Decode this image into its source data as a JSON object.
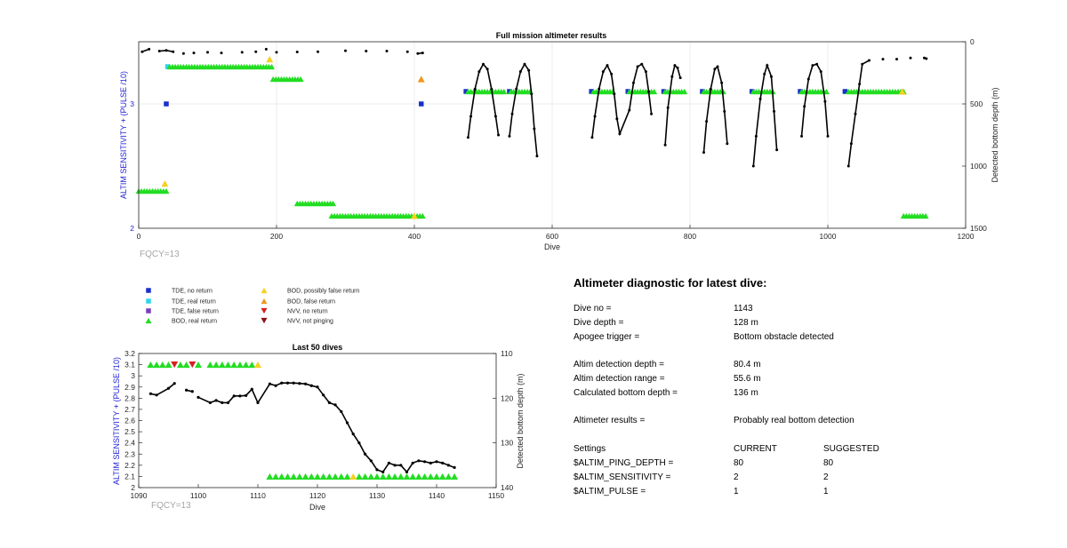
{
  "main_chart": {
    "title": "Full mission altimeter results",
    "xlabel": "Dive",
    "ylabel_left": "ALTIM SENSITIVITY + (PULSE /10)",
    "ylabel_right": "Detected bottom depth (m)",
    "x_ticks": [
      "0",
      "200",
      "400",
      "600",
      "800",
      "1000",
      "1200"
    ],
    "y_left_ticks": [
      "2",
      "3"
    ],
    "y_right_ticks": [
      "0",
      "500",
      "1000",
      "1500"
    ],
    "fqcy": "FQCY=13"
  },
  "legend": [
    {
      "label": "TDE, no return",
      "marker": "square",
      "color": "#1a2fcc"
    },
    {
      "label": "TDE, real return",
      "marker": "square",
      "color": "#2fd6e8"
    },
    {
      "label": "TDE, false return",
      "marker": "square",
      "color": "#7a3fb8"
    },
    {
      "label": "BOD, real return",
      "marker": "triangle-up",
      "color": "#22dd22"
    },
    {
      "label": "BOD, possibly false return",
      "marker": "triangle-up",
      "color": "#f5d020"
    },
    {
      "label": "BOD, false return",
      "marker": "triangle-up",
      "color": "#f0961e"
    },
    {
      "label": "NVV, no return",
      "marker": "triangle-down",
      "color": "#d42020"
    },
    {
      "label": "NVV, not pinging",
      "marker": "triangle-down",
      "color": "#8b1010"
    }
  ],
  "small_chart": {
    "title": "Last 50 dives",
    "xlabel": "Dive",
    "ylabel_left": "ALTIM SENSITIVITY + (PULSE /10)",
    "ylabel_right": "Detected bottom depth (m)",
    "x_ticks": [
      "1090",
      "1100",
      "1110",
      "1120",
      "1130",
      "1140",
      "1150"
    ],
    "y_left_ticks": [
      "2",
      "2.1",
      "2.2",
      "2.3",
      "2.4",
      "2.5",
      "2.6",
      "2.7",
      "2.8",
      "2.9",
      "3",
      "3.1",
      "3.2"
    ],
    "y_right_ticks": [
      "110",
      "120",
      "130",
      "140"
    ],
    "fqcy": "FQCY=13"
  },
  "diagnostic": {
    "title": "Altimeter diagnostic for latest dive:",
    "rows": [
      {
        "label": "Dive no =",
        "value": "1143",
        "extra": ""
      },
      {
        "label": "Dive depth =",
        "value": "128 m",
        "extra": ""
      },
      {
        "label": "Apogee trigger =",
        "value": "Bottom obstacle detected",
        "extra": ""
      },
      {
        "label": "",
        "value": "",
        "extra": ""
      },
      {
        "label": "Altim detection depth =",
        "value": "80.4 m",
        "extra": ""
      },
      {
        "label": "Altim detection range =",
        "value": "55.6 m",
        "extra": ""
      },
      {
        "label": "Calculated bottom depth =",
        "value": "136 m",
        "extra": ""
      },
      {
        "label": "",
        "value": "",
        "extra": ""
      },
      {
        "label": "Altimeter results =",
        "value": "Probably real bottom detection",
        "extra": ""
      },
      {
        "label": "",
        "value": "",
        "extra": ""
      },
      {
        "label": "Settings",
        "value": "CURRENT",
        "extra": "SUGGESTED"
      },
      {
        "label": "$ALTIM_PING_DEPTH =",
        "value": "80",
        "extra": "80"
      },
      {
        "label": "$ALTIM_SENSITIVITY =",
        "value": "2",
        "extra": "2"
      },
      {
        "label": "$ALTIM_PULSE =",
        "value": "1",
        "extra": "1"
      }
    ]
  },
  "chart_data": [
    {
      "type": "scatter",
      "title": "Full mission altimeter results",
      "xlabel": "Dive",
      "ylabel": "ALTIM SENSITIVITY + (PULSE /10)",
      "ylabel_right": "Detected bottom depth (m)",
      "xlim": [
        0,
        1200
      ],
      "ylim": [
        2,
        3.5
      ],
      "ylim_right": [
        0,
        1500
      ],
      "grid": true,
      "bottom_depth_line": [
        [
          5,
          80
        ],
        [
          15,
          60
        ],
        [
          30,
          75
        ],
        [
          40,
          70
        ],
        [
          50,
          80
        ],
        [
          65,
          95
        ],
        [
          80,
          90
        ],
        [
          100,
          85
        ],
        [
          120,
          90
        ],
        [
          150,
          85
        ],
        [
          170,
          80
        ],
        [
          185,
          60
        ],
        [
          200,
          85
        ],
        [
          230,
          82
        ],
        [
          260,
          80
        ],
        [
          300,
          72
        ],
        [
          330,
          75
        ],
        [
          360,
          75
        ],
        [
          390,
          80
        ],
        [
          405,
          95
        ],
        [
          412,
          90
        ],
        [
          478,
          770
        ],
        [
          482,
          600
        ],
        [
          488,
          380
        ],
        [
          494,
          240
        ],
        [
          500,
          180
        ],
        [
          506,
          220
        ],
        [
          512,
          380
        ],
        [
          518,
          600
        ],
        [
          522,
          750
        ],
        [
          538,
          760
        ],
        [
          542,
          580
        ],
        [
          548,
          380
        ],
        [
          554,
          240
        ],
        [
          560,
          180
        ],
        [
          566,
          230
        ],
        [
          570,
          420
        ],
        [
          574,
          700
        ],
        [
          578,
          920
        ],
        [
          658,
          770
        ],
        [
          662,
          600
        ],
        [
          668,
          380
        ],
        [
          674,
          240
        ],
        [
          680,
          190
        ],
        [
          686,
          260
        ],
        [
          690,
          420
        ],
        [
          694,
          620
        ],
        [
          698,
          740
        ],
        [
          712,
          550
        ],
        [
          718,
          330
        ],
        [
          724,
          200
        ],
        [
          730,
          180
        ],
        [
          736,
          240
        ],
        [
          740,
          400
        ],
        [
          744,
          580
        ],
        [
          764,
          830
        ],
        [
          768,
          530
        ],
        [
          774,
          280
        ],
        [
          778,
          190
        ],
        [
          782,
          210
        ],
        [
          786,
          290
        ],
        [
          820,
          890
        ],
        [
          824,
          640
        ],
        [
          830,
          380
        ],
        [
          836,
          220
        ],
        [
          840,
          200
        ],
        [
          846,
          330
        ],
        [
          850,
          560
        ],
        [
          854,
          820
        ],
        [
          892,
          1000
        ],
        [
          896,
          760
        ],
        [
          902,
          460
        ],
        [
          908,
          260
        ],
        [
          912,
          190
        ],
        [
          918,
          280
        ],
        [
          922,
          560
        ],
        [
          926,
          870
        ],
        [
          962,
          760
        ],
        [
          966,
          520
        ],
        [
          972,
          300
        ],
        [
          978,
          190
        ],
        [
          984,
          180
        ],
        [
          990,
          240
        ],
        [
          996,
          480
        ],
        [
          1000,
          760
        ],
        [
          1030,
          1000
        ],
        [
          1034,
          820
        ],
        [
          1040,
          580
        ],
        [
          1046,
          340
        ],
        [
          1050,
          180
        ],
        [
          1060,
          150
        ],
        [
          1080,
          140
        ],
        [
          1100,
          140
        ],
        [
          1120,
          130
        ],
        [
          1140,
          130
        ],
        [
          1143,
          136
        ]
      ],
      "series": [
        {
          "name": "TDE, no return",
          "segments": [
            [
              40,
              3.0
            ],
            [
              410,
              3.0
            ],
            [
              475,
              3.1
            ],
            [
              538,
              3.1
            ],
            [
              657,
              3.1
            ],
            [
              710,
              3.1
            ],
            [
              762,
              3.1
            ],
            [
              818,
              3.1
            ],
            [
              890,
              3.1
            ],
            [
              960,
              3.1
            ],
            [
              1025,
              3.1
            ]
          ]
        },
        {
          "name": "TDE, real return",
          "points": [
            [
              42,
              3.3
            ]
          ]
        },
        {
          "name": "BOD, real return",
          "ranges": [
            [
              45,
              195,
              3.3
            ],
            [
              195,
              235,
              3.2
            ],
            [
              0,
              40,
              2.3
            ],
            [
              230,
              285,
              2.2
            ],
            [
              280,
              415,
              2.1
            ],
            [
              478,
              530,
              3.1
            ],
            [
              540,
              570,
              3.1
            ],
            [
              660,
              690,
              3.1
            ],
            [
              712,
              748,
              3.1
            ],
            [
              764,
              792,
              3.1
            ],
            [
              820,
              850,
              3.1
            ],
            [
              892,
              920,
              3.1
            ],
            [
              962,
              1000,
              3.1
            ],
            [
              1030,
              1110,
              3.1
            ],
            [
              1110,
              1145,
              2.1
            ]
          ]
        },
        {
          "name": "BOD, possibly false return",
          "points": [
            [
              190,
              3.36
            ],
            [
              38,
              2.36
            ],
            [
              400,
              2.1
            ],
            [
              1108,
              3.1
            ]
          ]
        },
        {
          "name": "BOD, false return",
          "points": [
            [
              410,
              3.2
            ]
          ]
        }
      ]
    },
    {
      "type": "scatter",
      "title": "Last 50 dives",
      "xlabel": "Dive",
      "ylabel": "ALTIM SENSITIVITY + (PULSE /10)",
      "ylabel_right": "Detected bottom depth (m)",
      "xlim": [
        1090,
        1150
      ],
      "ylim": [
        2,
        3.2
      ],
      "ylim_right": [
        110,
        140
      ],
      "grid": false,
      "bottom_depth_line": [
        [
          1092,
          119
        ],
        [
          1093,
          119.3
        ],
        [
          1095,
          117.8
        ],
        [
          1096,
          116.7
        ],
        [
          null,
          null
        ],
        [
          1098,
          118.2
        ],
        [
          1099,
          118.5
        ],
        [
          null,
          null
        ],
        [
          1100,
          119.8
        ],
        [
          1102,
          121
        ],
        [
          1103,
          120.5
        ],
        [
          1104,
          121
        ],
        [
          1105,
          121
        ],
        [
          1106,
          119.5
        ],
        [
          1107,
          119.5
        ],
        [
          1108,
          119.4
        ],
        [
          1109,
          118
        ],
        [
          1110,
          121
        ],
        [
          1112,
          116.8
        ],
        [
          1113,
          117.2
        ],
        [
          1114,
          116.6
        ],
        [
          1115,
          116.6
        ],
        [
          1116,
          116.6
        ],
        [
          1117,
          116.7
        ],
        [
          1118,
          116.8
        ],
        [
          1119,
          117.2
        ],
        [
          1120,
          117.5
        ],
        [
          1121,
          119.3
        ],
        [
          1122,
          121
        ],
        [
          1123,
          121.5
        ],
        [
          1124,
          123
        ],
        [
          1125,
          125.5
        ],
        [
          1126,
          128
        ],
        [
          1127,
          130
        ],
        [
          1128,
          132.5
        ],
        [
          1129,
          134
        ],
        [
          1130,
          136
        ],
        [
          1131,
          136.5
        ],
        [
          1132,
          134.5
        ],
        [
          1133,
          135
        ],
        [
          1134,
          135
        ],
        [
          1135,
          136.5
        ],
        [
          1136,
          134.5
        ],
        [
          1137,
          134
        ],
        [
          1138,
          134.2
        ],
        [
          1139,
          134.5
        ],
        [
          1140,
          134.2
        ],
        [
          1141,
          134.5
        ],
        [
          1142,
          135
        ],
        [
          1143,
          135.5
        ]
      ],
      "series": [
        {
          "name": "BOD, real return",
          "row": 3.1,
          "dives": [
            1092,
            1093,
            1094,
            1095,
            1097,
            1098,
            1100,
            1102,
            1103,
            1104,
            1105,
            1106,
            1107,
            1108,
            1109
          ]
        },
        {
          "name": "NVV, no return",
          "row": 3.1,
          "dives": [
            1096,
            1099
          ]
        },
        {
          "name": "BOD, possibly false return",
          "row": 3.1,
          "dives": [
            1110
          ]
        },
        {
          "name": "BOD, real return",
          "row": 2.1,
          "dives": [
            1112,
            1113,
            1114,
            1115,
            1116,
            1117,
            1118,
            1119,
            1120,
            1121,
            1122,
            1123,
            1124,
            1125,
            1127,
            1128,
            1129,
            1130,
            1131,
            1132,
            1133,
            1134,
            1135,
            1136,
            1137,
            1138,
            1139,
            1140,
            1141,
            1142,
            1143
          ]
        },
        {
          "name": "BOD, possibly false return",
          "row": 2.1,
          "dives": [
            1126
          ]
        }
      ]
    }
  ]
}
